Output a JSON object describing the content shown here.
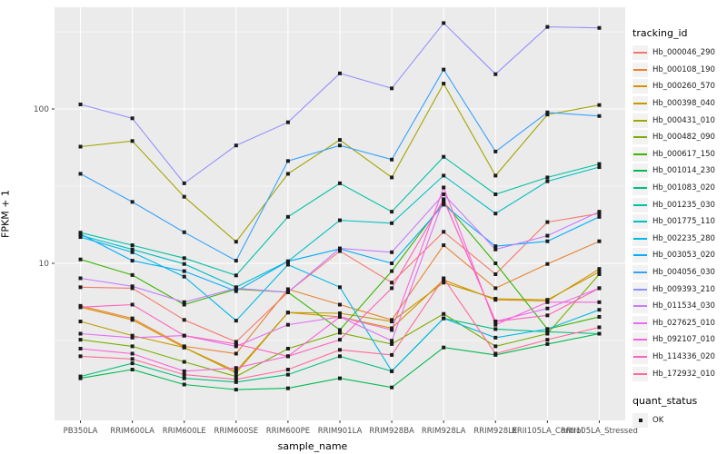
{
  "figure": {
    "x_axis_title": "sample_name",
    "y_axis_title": "FPKM + 1",
    "legend_tracking_title": "tracking_id",
    "legend_quant_title": "quant_status",
    "legend_quant_item": "OK"
  },
  "style": {
    "panel_bg": "#EBEBEB",
    "grid_major": "#FFFFFF",
    "grid_minor": "#F7F7F7",
    "tick_label_color": "#4D4D4D",
    "marker_color": "#1a1a1a"
  },
  "chart_data": {
    "type": "line",
    "title": "",
    "xlabel": "sample_name",
    "ylabel": "FPKM + 1",
    "y_scale": "log10",
    "ylim": [
      0.96,
      456
    ],
    "yticks": [
      10,
      100
    ],
    "y_minor": [
      3.162,
      31.62,
      316.2
    ],
    "legend_position": "right",
    "grid": true,
    "point_shape": "black-square (quant_status OK)",
    "categories": [
      "PB350LA",
      "RRIM600LA",
      "RRIM600LE",
      "RRIM600SE",
      "RRIM600PE",
      "RRIM901LA",
      "RRIM928BA",
      "RRIM928LA",
      "RRIM928LE",
      "RRII105LA_Control",
      "RRII105LA_Stressed"
    ],
    "series": [
      {
        "name": "Hb_000046_290",
        "color": "#F8766D",
        "values": [
          7.0,
          6.9,
          4.3,
          3.1,
          6.5,
          12.0,
          7.5,
          16,
          8.5,
          18.5,
          21
        ]
      },
      {
        "name": "Hb_000108_190",
        "color": "#EA8331",
        "values": [
          5.3,
          4.4,
          2.9,
          2.6,
          6.8,
          5.4,
          4.3,
          13.1,
          6.9,
          9.9,
          13.9
        ]
      },
      {
        "name": "Hb_000260_570",
        "color": "#D89000",
        "values": [
          5.2,
          4.3,
          2.85,
          2.0,
          4.8,
          4.5,
          3.8,
          7.8,
          5.8,
          5.7,
          9.2
        ]
      },
      {
        "name": "Hb_000398_040",
        "color": "#C09B00",
        "values": [
          4.2,
          3.4,
          2.85,
          1.95,
          4.8,
          4.75,
          4.2,
          7.5,
          5.9,
          5.8,
          8.8
        ]
      },
      {
        "name": "Hb_000431_010",
        "color": "#A3A500",
        "values": [
          57,
          62,
          27,
          13.8,
          38,
          63,
          36,
          146,
          37,
          92,
          106
        ]
      },
      {
        "name": "Hb_000482_090",
        "color": "#7CAE00",
        "values": [
          3.2,
          2.9,
          2.3,
          1.85,
          2.8,
          3.55,
          3.0,
          4.7,
          2.9,
          3.5,
          8.5
        ]
      },
      {
        "name": "Hb_000617_150",
        "color": "#39B600",
        "values": [
          10.6,
          8.4,
          5.4,
          6.8,
          6.5,
          3.7,
          8.9,
          25,
          10.0,
          3.75,
          4.5
        ]
      },
      {
        "name": "Hb_001014_230",
        "color": "#00BB4E",
        "values": [
          1.8,
          2.05,
          1.64,
          1.52,
          1.55,
          1.8,
          1.57,
          2.85,
          2.55,
          3.0,
          3.5
        ]
      },
      {
        "name": "Hb_001083_020",
        "color": "#00BF7D",
        "values": [
          1.85,
          2.25,
          1.8,
          1.7,
          1.9,
          2.5,
          2.0,
          4.4,
          3.75,
          3.6,
          3.5
        ]
      },
      {
        "name": "Hb_001235_030",
        "color": "#00C1A3",
        "values": [
          15.8,
          13.1,
          10.8,
          8.35,
          20,
          33,
          21.6,
          49,
          28,
          36,
          44
        ]
      },
      {
        "name": "Hb_001775_110",
        "color": "#00BFC4",
        "values": [
          15.2,
          12.3,
          9.9,
          7.0,
          10.3,
          19,
          18.2,
          37,
          21,
          34,
          42
        ]
      },
      {
        "name": "Hb_002235_280",
        "color": "#00B8E7",
        "values": [
          14.8,
          11.8,
          8.2,
          4.25,
          9.8,
          7.0,
          2.0,
          4.4,
          3.3,
          3.75,
          5.0
        ]
      },
      {
        "name": "Hb_003053_020",
        "color": "#00ACFC",
        "values": [
          15.5,
          10.4,
          8.9,
          6.6,
          10.3,
          12.4,
          10.0,
          24,
          12.9,
          13.9,
          20
        ]
      },
      {
        "name": "Hb_004056_030",
        "color": "#35A2FF",
        "values": [
          38,
          25,
          15.9,
          10.4,
          46,
          58,
          47,
          180,
          53,
          95,
          90
        ]
      },
      {
        "name": "Hb_009393_210",
        "color": "#9590FF",
        "values": [
          107,
          87,
          33,
          58,
          82,
          170,
          136,
          360,
          168,
          340,
          335
        ]
      },
      {
        "name": "Hb_011534_030",
        "color": "#C77CFF",
        "values": [
          8.0,
          7.1,
          5.6,
          6.9,
          6.5,
          12.5,
          11.8,
          28,
          12.3,
          15.1,
          21.6
        ]
      },
      {
        "name": "Hb_027625_010",
        "color": "#E76BF3",
        "values": [
          3.5,
          3.3,
          3.4,
          2.9,
          4.0,
          4.5,
          3.15,
          26,
          4.2,
          5.1,
          6.9
        ]
      },
      {
        "name": "Hb_092107_010",
        "color": "#FA62DB",
        "values": [
          2.8,
          2.6,
          2.0,
          2.1,
          2.5,
          4.5,
          3.7,
          31,
          4.0,
          5.6,
          5.6
        ]
      },
      {
        "name": "Hb_114336_020",
        "color": "#FF62BC",
        "values": [
          5.2,
          5.4,
          3.4,
          3.0,
          2.5,
          3.2,
          6.9,
          26,
          4.2,
          4.6,
          6.9
        ]
      },
      {
        "name": "Hb_172932_010",
        "color": "#FF6A98",
        "values": [
          2.5,
          2.4,
          1.9,
          1.77,
          2.05,
          2.75,
          2.55,
          8.0,
          2.6,
          3.2,
          3.85
        ]
      }
    ],
    "quant_status_legend": {
      "title": "quant_status",
      "items": [
        "OK"
      ]
    }
  }
}
